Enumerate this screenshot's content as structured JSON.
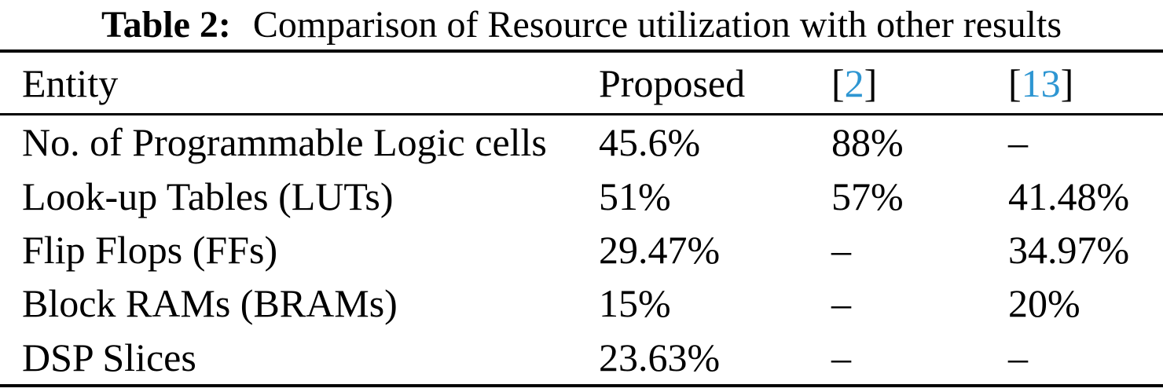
{
  "colors": {
    "background": "#FFFFFF",
    "text": "#000000",
    "citation": "#2E96D2",
    "rule": "#000000"
  },
  "caption": {
    "label": "Table 2:",
    "text": "Comparison of Resource utilization with other results"
  },
  "header": {
    "entity": "Entity",
    "proposed": "Proposed",
    "ref2": {
      "open": "[",
      "num": "2",
      "close": "]"
    },
    "ref13": {
      "open": "[",
      "num": "13",
      "close": "]"
    }
  },
  "rows": [
    {
      "entity": "No. of Programmable Logic cells",
      "proposed": "45.6%",
      "ref2": "88%",
      "ref13": "–"
    },
    {
      "entity": "Look-up Tables (LUTs)",
      "proposed": "51%",
      "ref2": "57%",
      "ref13": "41.48%"
    },
    {
      "entity": "Flip Flops (FFs)",
      "proposed": "29.47%",
      "ref2": "–",
      "ref13": "34.97%"
    },
    {
      "entity": "Block RAMs (BRAMs)",
      "proposed": "15%",
      "ref2": "–",
      "ref13": "20%"
    },
    {
      "entity": "DSP Slices",
      "proposed": "23.63%",
      "ref2": "–",
      "ref13": "–"
    }
  ]
}
